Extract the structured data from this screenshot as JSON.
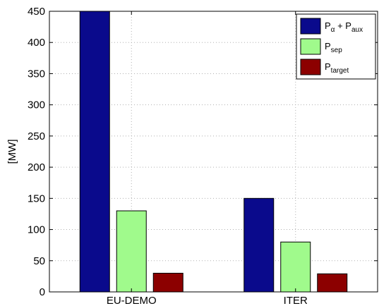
{
  "chart_data": {
    "type": "bar",
    "categories": [
      "EU-DEMO",
      "ITER"
    ],
    "series": [
      {
        "name": "P_α + P_aux",
        "legend_main": "P",
        "legend_sub": "α",
        "legend_plus": " + P",
        "legend_sub2": "aux",
        "color": "#0a0a8c",
        "values": [
          450,
          150
        ]
      },
      {
        "name": "P_sep",
        "legend_main": "P",
        "legend_sub": "sep",
        "color": "#a0fa8c",
        "values": [
          130,
          80
        ]
      },
      {
        "name": "P_target",
        "legend_main": "P",
        "legend_sub": "target",
        "color": "#8c0000",
        "values": [
          30,
          29
        ]
      }
    ],
    "ylabel": "[MW]",
    "ylim": [
      0,
      450
    ],
    "yticks": [
      0,
      50,
      100,
      150,
      200,
      250,
      300,
      350,
      400,
      450
    ],
    "grid": true,
    "legend_position": "top-right"
  }
}
